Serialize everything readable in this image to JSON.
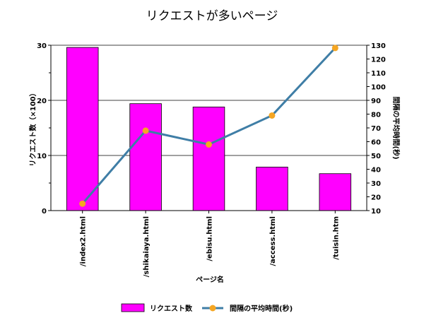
{
  "chart_data": {
    "type": "bar",
    "title": "リクエストが多いページ",
    "xlabel": "ページ名",
    "categories": [
      "/index2.html",
      "/shikaiaya.html",
      "/ebisu.html",
      "/access.html",
      "/tuisin.htm"
    ],
    "series": [
      {
        "name": "リクエスト数",
        "type": "bar",
        "axis": "left",
        "color": "#ff00ff",
        "values": [
          29.6,
          19.4,
          18.8,
          7.9,
          6.7
        ]
      },
      {
        "name": "間隔の平均時間(秒)",
        "type": "line",
        "axis": "right",
        "color": "#3f7ea6",
        "marker_color": "#f5a623",
        "values": [
          15,
          68,
          58,
          79,
          128
        ]
      }
    ],
    "y_left": {
      "label": "リクエスト数（×100）",
      "range": [
        0,
        30
      ],
      "ticks": [
        "0",
        "10",
        "20",
        "30"
      ],
      "minor_step": 5
    },
    "y_right": {
      "label": "間隔の平均時間(秒)",
      "range": [
        10,
        130
      ],
      "ticks": [
        "10",
        "20",
        "30",
        "40",
        "50",
        "60",
        "70",
        "80",
        "90",
        "100",
        "110",
        "120",
        "130"
      ]
    },
    "grid": true,
    "legend_position": "bottom"
  }
}
